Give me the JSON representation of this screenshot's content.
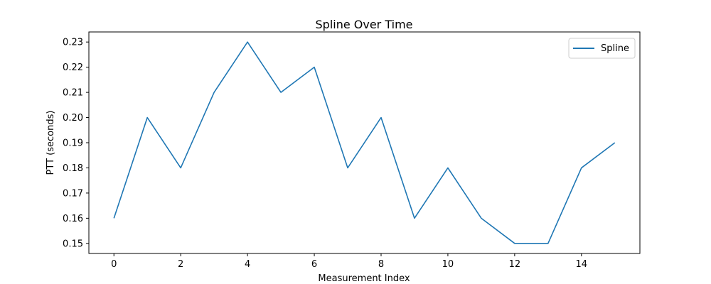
{
  "chart_data": {
    "type": "line",
    "title": "Spline Over Time",
    "xlabel": "Measurement Index",
    "ylabel": "PTT (seconds)",
    "xlim": [
      -0.75,
      15.75
    ],
    "ylim": [
      0.146,
      0.234
    ],
    "x_ticks": [
      0,
      2,
      4,
      6,
      8,
      10,
      12,
      14
    ],
    "y_ticks": [
      0.15,
      0.16,
      0.17,
      0.18,
      0.19,
      0.2,
      0.21,
      0.22,
      0.23
    ],
    "x_tick_labels": [
      "0",
      "2",
      "4",
      "6",
      "8",
      "10",
      "12",
      "14"
    ],
    "y_tick_labels": [
      "0.15",
      "0.16",
      "0.17",
      "0.18",
      "0.19",
      "0.20",
      "0.21",
      "0.22",
      "0.23"
    ],
    "grid": false,
    "legend_position": "top-right",
    "series": [
      {
        "name": "Spline",
        "color": "#1f77b4",
        "x": [
          0,
          1,
          2,
          3,
          4,
          5,
          6,
          7,
          8,
          9,
          10,
          11,
          12,
          13,
          14,
          15
        ],
        "y": [
          0.16,
          0.2,
          0.18,
          0.21,
          0.23,
          0.21,
          0.22,
          0.18,
          0.2,
          0.16,
          0.18,
          0.16,
          0.15,
          0.15,
          0.18,
          0.19
        ]
      }
    ]
  }
}
